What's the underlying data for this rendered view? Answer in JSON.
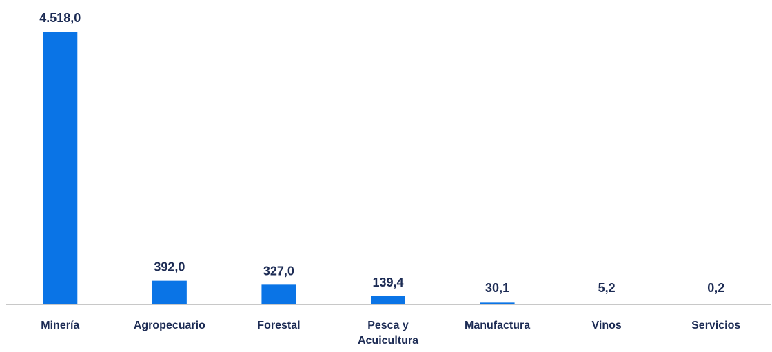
{
  "chart_data": {
    "type": "bar",
    "title": "",
    "xlabel": "",
    "ylabel": "",
    "categories": [
      "Minería",
      "Agropecuario",
      "Forestal",
      "Pesca y Acuicultura",
      "Manufactura",
      "Vinos",
      "Servicios"
    ],
    "category_label_lines": [
      [
        "Minería"
      ],
      [
        "Agropecuario"
      ],
      [
        "Forestal"
      ],
      [
        "Pesca y",
        "Acuicultura"
      ],
      [
        "Manufactura"
      ],
      [
        "Vinos"
      ],
      [
        "Servicios"
      ]
    ],
    "values": [
      4518.0,
      392.0,
      327.0,
      139.4,
      30.1,
      5.2,
      0.2
    ],
    "value_labels": [
      "4.518,0",
      "392,0",
      "327,0",
      "139,4",
      "30,1",
      "5,2",
      "0,2"
    ],
    "ylim": [
      0,
      4518.0
    ],
    "grid": false,
    "legend": "none",
    "colors": {
      "bar": "#0a74e6",
      "text": "#1c2b54",
      "axis": "#c8c8c8"
    }
  }
}
